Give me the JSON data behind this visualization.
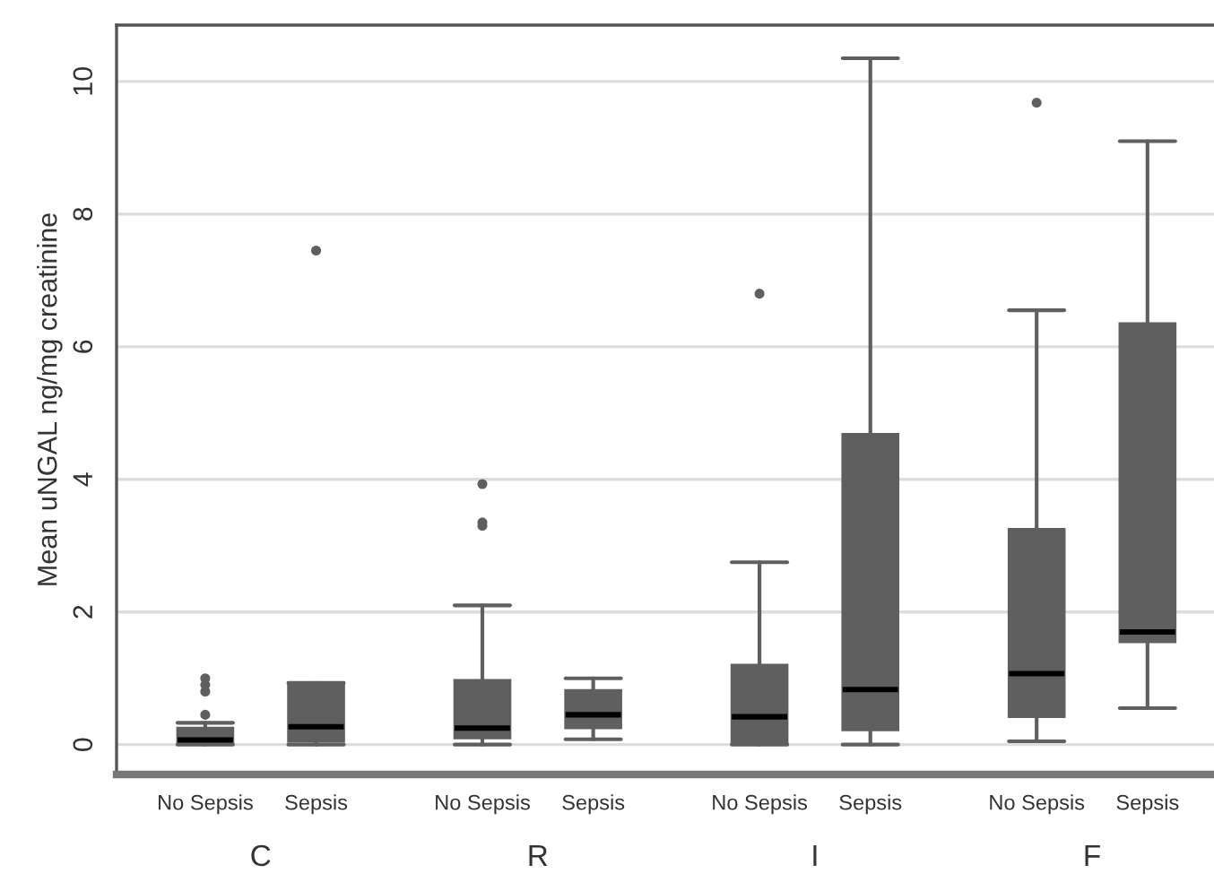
{
  "chart_data": {
    "type": "box",
    "ylabel": "Mean uNGAL ng/mg creatinine",
    "categories": [
      "No Sepsis",
      "Sepsis",
      "No Sepsis",
      "Sepsis",
      "No Sepsis",
      "Sepsis",
      "No Sepsis",
      "Sepsis"
    ],
    "color": "#5f5f5f",
    "boxes": [
      {
        "low": 0,
        "q1": 0.02,
        "median": 0.07,
        "q3": 0.25,
        "high": 0.33,
        "outliers": [
          0.45,
          0.8,
          0.9,
          1.0
        ]
      },
      {
        "low": 0,
        "q1": 0.05,
        "median": 0.27,
        "q3": 0.93,
        "high": 0.93,
        "outliers": [
          7.45
        ]
      },
      {
        "low": 0,
        "q1": 0.1,
        "median": 0.25,
        "q3": 0.97,
        "high": 2.1,
        "outliers": [
          3.3,
          3.35,
          3.93
        ]
      },
      {
        "low": 0.08,
        "q1": 0.25,
        "median": 0.45,
        "q3": 0.82,
        "high": 1.0
      },
      {
        "low": 0,
        "q1": 0.02,
        "median": 0.42,
        "q3": 1.2,
        "high": 2.75,
        "outliers": [
          6.8
        ]
      },
      {
        "low": 0,
        "q1": 0.22,
        "median": 0.83,
        "q3": 4.68,
        "high": 10.35
      },
      {
        "low": 0.05,
        "q1": 0.42,
        "median": 1.07,
        "q3": 3.25,
        "high": 6.55,
        "outliers": [
          9.68
        ]
      },
      {
        "low": 0.55,
        "q1": 1.55,
        "median": 1.7,
        "q3": 6.35,
        "high": 9.1
      }
    ],
    "annotations": [
      "C",
      "R",
      "I",
      "F"
    ],
    "ylim": [
      -0.45,
      10.85
    ],
    "yticks": [
      0,
      2,
      4,
      6,
      8,
      10
    ],
    "grid": "y",
    "legend": false
  }
}
